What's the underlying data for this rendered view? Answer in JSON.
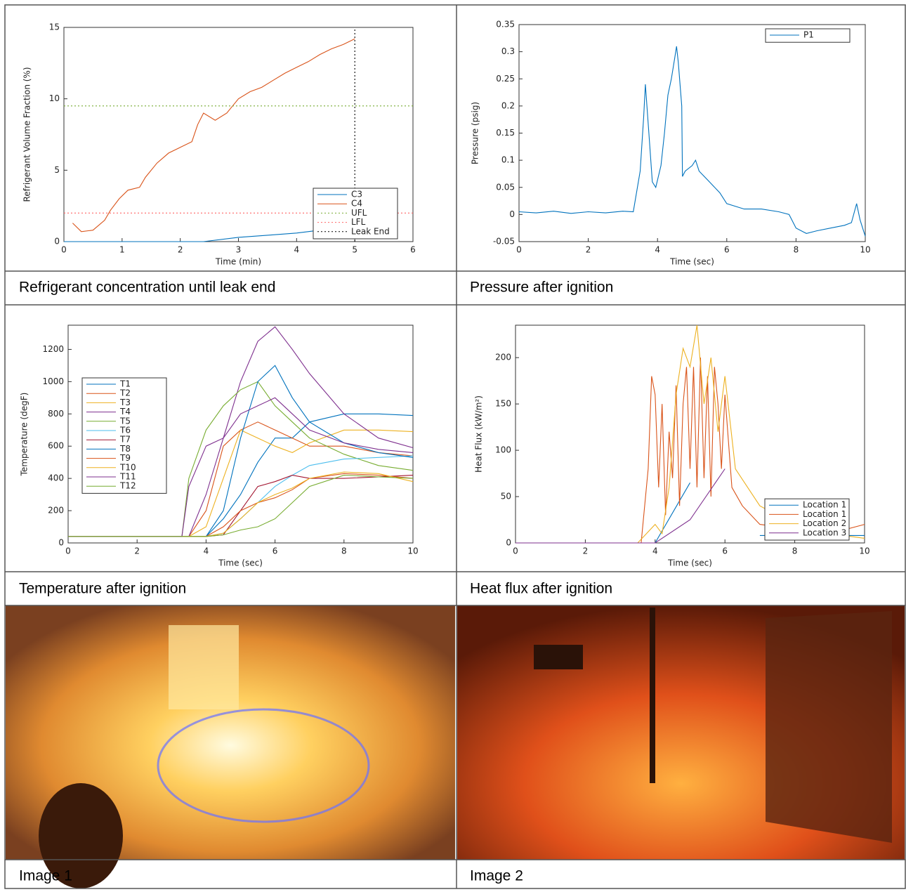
{
  "chart_data": [
    {
      "type": "line",
      "xlabel": "Time (min)",
      "ylabel": "Refrigerant Volume Fraction (%)",
      "xlim": [
        0,
        6
      ],
      "ylim": [
        0,
        15
      ],
      "xticks": [
        0,
        1,
        2,
        3,
        4,
        5,
        6
      ],
      "yticks": [
        0,
        5,
        10,
        15
      ],
      "legend": "lower right",
      "series": [
        {
          "name": "C3",
          "color": "#0072BD",
          "x": [
            0,
            1,
            2,
            2.4,
            3,
            3.5,
            4,
            4.6
          ],
          "values": [
            0,
            0,
            0,
            0,
            0.3,
            0.45,
            0.6,
            0.9
          ]
        },
        {
          "name": "C4",
          "color": "#D95319",
          "x": [
            0.15,
            0.3,
            0.5,
            0.7,
            0.8,
            0.95,
            1.1,
            1.3,
            1.4,
            1.6,
            1.8,
            2.0,
            2.2,
            2.3,
            2.4,
            2.6,
            2.8,
            2.9,
            3.0,
            3.2,
            3.4,
            3.6,
            3.8,
            4.0,
            4.2,
            4.4,
            4.6,
            4.8,
            5.0
          ],
          "values": [
            1.3,
            0.7,
            0.8,
            1.5,
            2.2,
            3.0,
            3.6,
            3.8,
            4.5,
            5.5,
            6.2,
            6.6,
            7.0,
            8.2,
            9.0,
            8.5,
            9.0,
            9.5,
            10.0,
            10.5,
            10.8,
            11.3,
            11.8,
            12.2,
            12.6,
            13.1,
            13.5,
            13.8,
            14.2
          ]
        },
        {
          "name": "UFL",
          "color": "#77AC30",
          "dash": true,
          "x": [
            0,
            6
          ],
          "values": [
            9.5,
            9.5
          ]
        },
        {
          "name": "LFL",
          "color": "#ff6666",
          "dash": true,
          "x": [
            0,
            6
          ],
          "values": [
            2,
            2
          ]
        },
        {
          "name": "Leak End",
          "color": "#000000",
          "dash": true,
          "x": [
            5,
            5
          ],
          "values": [
            0,
            15
          ]
        }
      ]
    },
    {
      "type": "line",
      "xlabel": "Time (sec)",
      "ylabel": "Pressure (psig)",
      "xlim": [
        0,
        10
      ],
      "ylim": [
        -0.05,
        0.35
      ],
      "xticks": [
        0,
        2,
        4,
        6,
        8,
        10
      ],
      "yticks": [
        -0.05,
        0,
        0.05,
        0.1,
        0.15,
        0.2,
        0.25,
        0.3,
        0.35
      ],
      "legend": "upper right",
      "series": [
        {
          "name": "P1",
          "color": "#0072BD",
          "x": [
            0,
            0.5,
            1,
            1.5,
            2,
            2.5,
            3,
            3.3,
            3.5,
            3.6,
            3.65,
            3.75,
            3.85,
            3.95,
            4.1,
            4.2,
            4.3,
            4.4,
            4.5,
            4.55,
            4.6,
            4.7,
            4.72,
            4.8,
            5.0,
            5.1,
            5.2,
            5.5,
            5.8,
            6.0,
            6.5,
            7,
            7.5,
            7.8,
            8.0,
            8.3,
            8.6,
            9.0,
            9.4,
            9.6,
            9.75,
            9.85,
            9.95,
            10
          ],
          "values": [
            0.005,
            0.003,
            0.006,
            0.002,
            0.005,
            0.003,
            0.006,
            0.005,
            0.08,
            0.18,
            0.24,
            0.15,
            0.06,
            0.05,
            0.09,
            0.15,
            0.22,
            0.25,
            0.29,
            0.31,
            0.28,
            0.2,
            0.07,
            0.08,
            0.09,
            0.1,
            0.08,
            0.06,
            0.04,
            0.02,
            0.01,
            0.01,
            0.005,
            0,
            -0.025,
            -0.035,
            -0.03,
            -0.025,
            -0.02,
            -0.015,
            0.02,
            -0.01,
            -0.03,
            -0.04
          ]
        }
      ]
    },
    {
      "type": "line",
      "xlabel": "Time (sec)",
      "ylabel": "Temperature (degF)",
      "xlim": [
        0,
        10
      ],
      "ylim": [
        0,
        1350
      ],
      "xticks": [
        0,
        2,
        4,
        6,
        8,
        10
      ],
      "yticks": [
        0,
        200,
        400,
        600,
        800,
        1000,
        1200
      ],
      "legend": "upper left",
      "series": [
        {
          "name": "T1",
          "color": "#0072BD",
          "x": [
            0,
            3.3,
            3.5,
            4,
            4.5,
            5,
            5.5,
            6,
            6.5,
            7,
            8,
            9,
            10
          ],
          "values": [
            40,
            40,
            40,
            40,
            150,
            300,
            500,
            650,
            650,
            750,
            800,
            800,
            790
          ]
        },
        {
          "name": "T2",
          "color": "#D95319",
          "x": [
            0,
            3.3,
            3.5,
            4,
            4.5,
            5,
            5.5,
            6,
            6.5,
            7,
            8,
            9,
            10
          ],
          "values": [
            40,
            40,
            40,
            200,
            600,
            700,
            750,
            700,
            650,
            600,
            600,
            560,
            540
          ]
        },
        {
          "name": "T3",
          "color": "#EDB120",
          "x": [
            0,
            3.3,
            3.5,
            4,
            4.5,
            5,
            5.5,
            6,
            6.5,
            7,
            8,
            9,
            10
          ],
          "values": [
            40,
            40,
            40,
            100,
            400,
            700,
            650,
            600,
            560,
            620,
            700,
            700,
            690
          ]
        },
        {
          "name": "T4",
          "color": "#7E2F8E",
          "x": [
            0,
            3.3,
            3.5,
            4,
            4.5,
            5,
            5.5,
            6,
            6.5,
            7,
            8,
            9,
            10
          ],
          "values": [
            40,
            40,
            40,
            300,
            650,
            1000,
            1250,
            1340,
            1200,
            1050,
            800,
            650,
            590
          ]
        },
        {
          "name": "T5",
          "color": "#77AC30",
          "x": [
            0,
            3.3,
            3.5,
            4,
            4.5,
            5,
            5.5,
            6,
            6.5,
            7,
            8,
            9,
            10
          ],
          "values": [
            40,
            40,
            400,
            700,
            850,
            950,
            1000,
            850,
            750,
            650,
            550,
            480,
            450
          ]
        },
        {
          "name": "T6",
          "color": "#4DBEEE",
          "x": [
            0,
            3.3,
            3.5,
            4,
            4.5,
            5,
            5.5,
            6,
            6.5,
            7,
            8,
            9,
            10
          ],
          "values": [
            40,
            40,
            40,
            40,
            60,
            150,
            250,
            350,
            420,
            480,
            520,
            530,
            540
          ]
        },
        {
          "name": "T7",
          "color": "#A2142F",
          "x": [
            0,
            3.3,
            3.5,
            4,
            4.5,
            5,
            5.5,
            6,
            6.5,
            7,
            8,
            9,
            10
          ],
          "values": [
            40,
            40,
            40,
            40,
            50,
            200,
            350,
            380,
            420,
            400,
            400,
            410,
            420
          ]
        },
        {
          "name": "T8",
          "color": "#0072BD",
          "x": [
            0,
            3.3,
            3.5,
            4,
            4.5,
            5,
            5.5,
            6,
            6.5,
            7,
            8,
            9,
            10
          ],
          "values": [
            40,
            40,
            40,
            40,
            200,
            650,
            1000,
            1100,
            900,
            750,
            620,
            560,
            530
          ]
        },
        {
          "name": "T9",
          "color": "#D95319",
          "x": [
            0,
            3.3,
            3.5,
            4,
            4.5,
            5,
            5.5,
            6,
            6.5,
            7,
            8,
            9,
            10
          ],
          "values": [
            40,
            40,
            40,
            40,
            100,
            200,
            250,
            280,
            330,
            400,
            430,
            420,
            400
          ]
        },
        {
          "name": "T10",
          "color": "#EDB120",
          "x": [
            0,
            3.3,
            3.5,
            4,
            4.5,
            5,
            5.5,
            6,
            6.5,
            7,
            8,
            9,
            10
          ],
          "values": [
            40,
            40,
            40,
            40,
            60,
            150,
            250,
            300,
            340,
            400,
            440,
            430,
            380
          ]
        },
        {
          "name": "T11",
          "color": "#7E2F8E",
          "x": [
            0,
            3.3,
            3.5,
            4,
            4.5,
            5,
            5.5,
            6,
            6.5,
            7,
            8,
            9,
            10
          ],
          "values": [
            40,
            40,
            350,
            600,
            650,
            800,
            850,
            900,
            800,
            700,
            620,
            580,
            560
          ]
        },
        {
          "name": "T12",
          "color": "#77AC30",
          "x": [
            0,
            3.3,
            3.5,
            4,
            4.5,
            5,
            5.5,
            6,
            6.5,
            7,
            8,
            9,
            10
          ],
          "values": [
            40,
            40,
            40,
            40,
            50,
            80,
            100,
            150,
            250,
            350,
            420,
            410,
            400
          ]
        }
      ]
    },
    {
      "type": "line",
      "xlabel": "Time (sec)",
      "ylabel": "Heat Flux (kW/m²)",
      "xlim": [
        0,
        10
      ],
      "ylim": [
        0,
        235
      ],
      "xticks": [
        0,
        2,
        4,
        6,
        8,
        10
      ],
      "yticks": [
        0,
        50,
        100,
        150,
        200
      ],
      "legend": "lower right",
      "series": [
        {
          "name": "Location 1",
          "color": "#0072BD",
          "x": [
            0,
            4,
            5,
            6,
            7,
            10
          ],
          "values": [
            0,
            0,
            65,
            null,
            8,
            8
          ]
        },
        {
          "name": "Location 1",
          "color": "#D95319",
          "x": [
            0,
            3.6,
            3.8,
            3.9,
            4.0,
            4.1,
            4.2,
            4.3,
            4.4,
            4.5,
            4.6,
            4.7,
            4.8,
            4.9,
            5.0,
            5.1,
            5.2,
            5.3,
            5.4,
            5.5,
            5.6,
            5.7,
            5.8,
            5.9,
            6.0,
            6.2,
            6.5,
            7,
            8,
            9,
            10
          ],
          "values": [
            0,
            0,
            80,
            180,
            160,
            60,
            150,
            30,
            120,
            70,
            170,
            40,
            150,
            190,
            80,
            190,
            60,
            200,
            70,
            180,
            50,
            190,
            150,
            80,
            160,
            60,
            40,
            20,
            15,
            10,
            20
          ]
        },
        {
          "name": "Location 2",
          "color": "#EDB120",
          "x": [
            0,
            3.5,
            4,
            4.2,
            4.4,
            4.6,
            4.8,
            5,
            5.2,
            5.4,
            5.6,
            5.8,
            6,
            6.3,
            7,
            8,
            9,
            10
          ],
          "values": [
            0,
            0,
            20,
            10,
            60,
            160,
            210,
            190,
            235,
            150,
            200,
            120,
            180,
            80,
            40,
            20,
            10,
            5
          ]
        },
        {
          "name": "Location 3",
          "color": "#7E2F8E",
          "x": [
            0,
            4,
            5,
            6
          ],
          "values": [
            0,
            0,
            25,
            80
          ]
        }
      ]
    }
  ],
  "captions": [
    "Refrigerant concentration until leak end",
    "Pressure after ignition",
    "Temperature after ignition",
    "Heat flux after ignition",
    "Image 1",
    "Image 2"
  ]
}
